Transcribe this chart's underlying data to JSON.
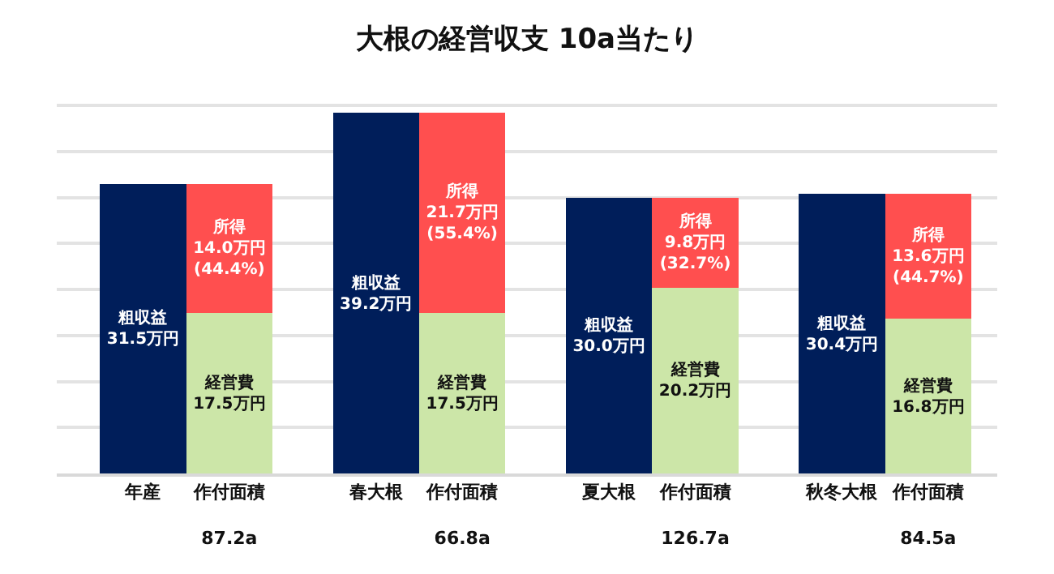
{
  "chart_data": {
    "type": "bar",
    "title": "大根の経営収支 10a当たり",
    "categories": [
      "年産",
      "作付面積\n\n87.2a",
      "春大根",
      "作付面積\n\n66.8a",
      "夏大根",
      "作付面積\n\n126.7a",
      "秋冬大根",
      "作付面積\n\n84.5a"
    ],
    "stacked": true,
    "series": [
      {
        "color": "#001e5a",
        "values": [
          31.5,
          null,
          39.2,
          null,
          30.0,
          null,
          30.4,
          null
        ],
        "value_labels": [
          "粗収益\n31.5万円",
          null,
          "粗収益\n39.2万円",
          null,
          "粗収益\n30.0万円",
          null,
          "粗収益\n30.4万円",
          null
        ]
      },
      {
        "color": "#cce6a8",
        "values": [
          null,
          17.5,
          null,
          17.5,
          null,
          20.2,
          null,
          16.8
        ],
        "value_labels": [
          null,
          "経営費\n17.5万円",
          null,
          "経営費\n17.5万円",
          null,
          "経営費\n20.2万円",
          null,
          "経営費\n16.8万円"
        ]
      },
      {
        "color": "#ff4f4f",
        "values": [
          null,
          14.0,
          null,
          21.7,
          null,
          9.8,
          null,
          13.6
        ],
        "value_labels": [
          null,
          "所得\n14.0万円\n(44.4%)",
          null,
          "所得\n21.7万円\n(55.4%)",
          null,
          "所得\n9.8万円\n(32.7%)",
          null,
          "所得\n13.6万円\n(44.7%)"
        ]
      }
    ],
    "grid": "y",
    "tick_labels": "x"
  }
}
